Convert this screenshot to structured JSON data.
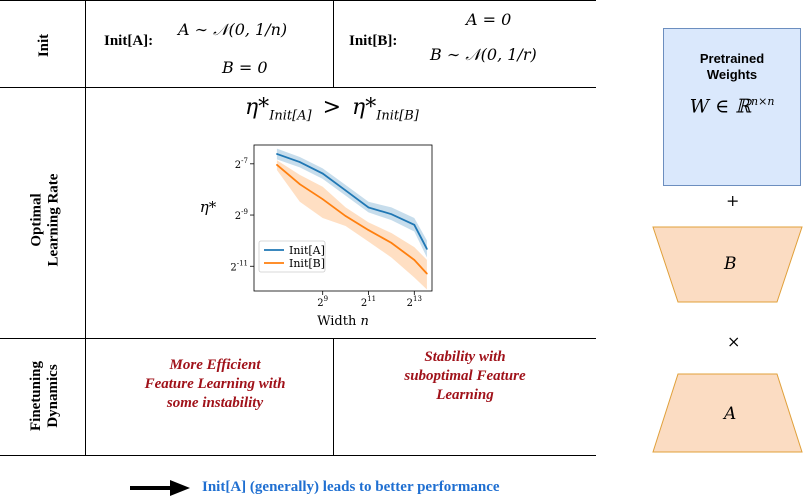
{
  "rows": {
    "init_label": "Init",
    "lr_label_line1": "Optimal",
    "lr_label_line2": "Learning Rate",
    "dyn_label_line1": "Finetuning",
    "dyn_label_line2": "Dynamics"
  },
  "init_a": {
    "label": "Init[A]:",
    "line1": "A ∼ 𝒩(0, 1/n)",
    "line2": "B = 0"
  },
  "init_b": {
    "label": "Init[B]:",
    "line1": "A = 0",
    "line2": "B ∼ 𝒩(0, 1/r)"
  },
  "lr_comparison": {
    "left_symbol": "η*",
    "left_sub": "Init[A]",
    "operator": ">",
    "right_symbol": "η*",
    "right_sub": "Init[B]"
  },
  "chart_data": {
    "type": "line",
    "xlabel": "Width n",
    "ylabel": "η*",
    "x_scale": "log2",
    "y_scale": "log2",
    "xlim": [
      64,
      14000
    ],
    "ylim": [
      0.00025,
      0.013
    ],
    "xticks": [
      512,
      2048,
      8192
    ],
    "xtick_labels": [
      "2^9",
      "2^11",
      "2^13"
    ],
    "yticks": [
      0.0078125,
      0.001953125,
      0.00048828125
    ],
    "ytick_labels": [
      "2^-7",
      "2^-9",
      "2^-11"
    ],
    "legend_position": "lower-left",
    "grid": false,
    "x": [
      128,
      256,
      512,
      1024,
      2048,
      4096,
      8192,
      12000
    ],
    "series": [
      {
        "name": "Init[A]",
        "color": "#1f77b4",
        "values": [
          0.0102,
          0.0082,
          0.006,
          0.0038,
          0.0024,
          0.002,
          0.0015,
          0.00078
        ],
        "band_low": [
          0.0088,
          0.0071,
          0.0052,
          0.0033,
          0.0021,
          0.0017,
          0.00125,
          0.00062
        ],
        "band_high": [
          0.0118,
          0.0094,
          0.0069,
          0.0044,
          0.0028,
          0.0024,
          0.0018,
          0.00098
        ]
      },
      {
        "name": "Init[B]",
        "color": "#ff7f0e",
        "values": [
          0.0076,
          0.0045,
          0.003,
          0.0019,
          0.0013,
          0.00092,
          0.00058,
          0.0004
        ],
        "band_low": [
          0.0066,
          0.0028,
          0.0018,
          0.00145,
          0.00095,
          0.00062,
          0.00036,
          0.00026
        ],
        "band_high": [
          0.0086,
          0.0058,
          0.0042,
          0.0024,
          0.0016,
          0.0012,
          0.00082,
          0.00058
        ]
      }
    ]
  },
  "dynamics": {
    "a_line1": "More Efficient",
    "a_line2": "Feature Learning with",
    "a_line3": "some instability",
    "b_line1": "Stability with",
    "b_line2": "suboptimal Feature",
    "b_line3": "Learning"
  },
  "footer": {
    "text": "Init[A] (generally) leads to better performance",
    "color": "#1f6fd1"
  },
  "side": {
    "pretrained_line1": "Pretrained",
    "pretrained_line2": "Weights",
    "pretrained_math": "W ∈ ℝ",
    "pretrained_sup": "n×n",
    "plus": "+",
    "b_label": "B",
    "times": "×",
    "a_label": "A",
    "blue_fill": "#dae8fc",
    "blue_border": "#6c8ebf",
    "orange_fill": "#fbdcc2",
    "orange_border": "#e0a03a"
  }
}
